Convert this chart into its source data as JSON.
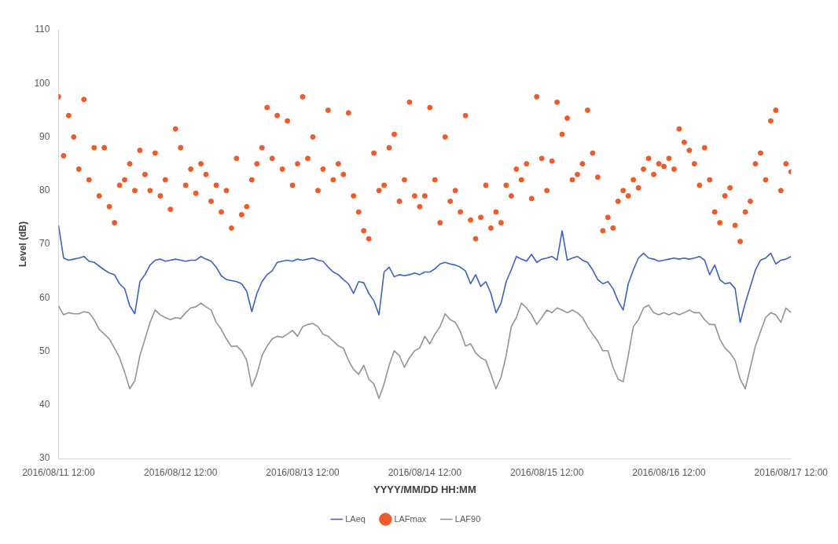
{
  "chart_data": {
    "type": "line",
    "xlabel": "YYYY/MM/DD HH:MM",
    "ylabel": "Level (dB)",
    "x": [
      "2016-08-11T12:00",
      "2016-08-11T13:00",
      "2016-08-11T14:00",
      "2016-08-11T15:00",
      "2016-08-11T16:00",
      "2016-08-11T17:00",
      "2016-08-11T18:00",
      "2016-08-11T19:00",
      "2016-08-11T20:00",
      "2016-08-11T21:00",
      "2016-08-11T22:00",
      "2016-08-11T23:00",
      "2016-08-12T00:00",
      "2016-08-12T01:00",
      "2016-08-12T02:00",
      "2016-08-12T03:00",
      "2016-08-12T04:00",
      "2016-08-12T05:00",
      "2016-08-12T06:00",
      "2016-08-12T07:00",
      "2016-08-12T08:00",
      "2016-08-12T09:00",
      "2016-08-12T10:00",
      "2016-08-12T11:00",
      "2016-08-12T12:00",
      "2016-08-12T13:00",
      "2016-08-12T14:00",
      "2016-08-12T15:00",
      "2016-08-12T16:00",
      "2016-08-12T17:00",
      "2016-08-12T18:00",
      "2016-08-12T19:00",
      "2016-08-12T20:00",
      "2016-08-12T21:00",
      "2016-08-12T22:00",
      "2016-08-12T23:00",
      "2016-08-13T00:00",
      "2016-08-13T01:00",
      "2016-08-13T02:00",
      "2016-08-13T03:00",
      "2016-08-13T04:00",
      "2016-08-13T05:00",
      "2016-08-13T06:00",
      "2016-08-13T07:00",
      "2016-08-13T08:00",
      "2016-08-13T09:00",
      "2016-08-13T10:00",
      "2016-08-13T11:00",
      "2016-08-13T12:00",
      "2016-08-13T13:00",
      "2016-08-13T14:00",
      "2016-08-13T15:00",
      "2016-08-13T16:00",
      "2016-08-13T17:00",
      "2016-08-13T18:00",
      "2016-08-13T19:00",
      "2016-08-13T20:00",
      "2016-08-13T21:00",
      "2016-08-13T22:00",
      "2016-08-13T23:00",
      "2016-08-14T00:00",
      "2016-08-14T01:00",
      "2016-08-14T02:00",
      "2016-08-14T03:00",
      "2016-08-14T04:00",
      "2016-08-14T05:00",
      "2016-08-14T06:00",
      "2016-08-14T07:00",
      "2016-08-14T08:00",
      "2016-08-14T09:00",
      "2016-08-14T10:00",
      "2016-08-14T11:00",
      "2016-08-14T12:00",
      "2016-08-14T13:00",
      "2016-08-14T14:00",
      "2016-08-14T15:00",
      "2016-08-14T16:00",
      "2016-08-14T17:00",
      "2016-08-14T18:00",
      "2016-08-14T19:00",
      "2016-08-14T20:00",
      "2016-08-14T21:00",
      "2016-08-14T22:00",
      "2016-08-14T23:00",
      "2016-08-15T00:00",
      "2016-08-15T01:00",
      "2016-08-15T02:00",
      "2016-08-15T03:00",
      "2016-08-15T04:00",
      "2016-08-15T05:00",
      "2016-08-15T06:00",
      "2016-08-15T07:00",
      "2016-08-15T08:00",
      "2016-08-15T09:00",
      "2016-08-15T10:00",
      "2016-08-15T11:00",
      "2016-08-15T12:00",
      "2016-08-15T13:00",
      "2016-08-15T14:00",
      "2016-08-15T15:00",
      "2016-08-15T16:00",
      "2016-08-15T17:00",
      "2016-08-15T18:00",
      "2016-08-15T19:00",
      "2016-08-15T20:00",
      "2016-08-15T21:00",
      "2016-08-15T22:00",
      "2016-08-15T23:00",
      "2016-08-16T00:00",
      "2016-08-16T01:00",
      "2016-08-16T02:00",
      "2016-08-16T03:00",
      "2016-08-16T04:00",
      "2016-08-16T05:00",
      "2016-08-16T06:00",
      "2016-08-16T07:00",
      "2016-08-16T08:00",
      "2016-08-16T09:00",
      "2016-08-16T10:00",
      "2016-08-16T11:00",
      "2016-08-16T12:00",
      "2016-08-16T13:00",
      "2016-08-16T14:00",
      "2016-08-16T15:00",
      "2016-08-16T16:00",
      "2016-08-16T17:00",
      "2016-08-16T18:00",
      "2016-08-16T19:00",
      "2016-08-16T20:00",
      "2016-08-16T21:00",
      "2016-08-16T22:00",
      "2016-08-16T23:00",
      "2016-08-17T00:00",
      "2016-08-17T01:00",
      "2016-08-17T02:00",
      "2016-08-17T03:00",
      "2016-08-17T04:00",
      "2016-08-17T05:00",
      "2016-08-17T06:00",
      "2016-08-17T07:00",
      "2016-08-17T08:00",
      "2016-08-17T09:00",
      "2016-08-17T10:00",
      "2016-08-17T11:00",
      "2016-08-17T12:00"
    ],
    "series": [
      {
        "name": "LAeq",
        "type": "line",
        "color": "#3a62c4",
        "values": [
          73.5,
          67.4,
          67,
          67.2,
          67.4,
          67.7,
          66.8,
          66.6,
          65.9,
          65.2,
          64.6,
          64.3,
          62.6,
          61.7,
          58.5,
          57,
          63,
          64.3,
          66.1,
          67,
          67.2,
          66.8,
          67,
          67.2,
          67,
          66.8,
          67,
          67,
          67.7,
          67.2,
          66.8,
          65.7,
          64.1,
          63.4,
          63.2,
          63,
          62.6,
          61.2,
          57.4,
          60.8,
          63,
          64.3,
          65,
          66.6,
          66.8,
          67,
          66.8,
          67.2,
          67,
          67.2,
          67.4,
          67,
          66.8,
          65.7,
          64.8,
          64.3,
          63.4,
          62.6,
          60.8,
          63,
          62.8,
          60.8,
          59.4,
          56.8,
          64.8,
          65.7,
          63.9,
          64.3,
          64.1,
          64.3,
          64.6,
          64.3,
          64.8,
          64.8,
          65.4,
          66.3,
          66.6,
          66.3,
          66.1,
          65.7,
          65,
          62.6,
          64.3,
          62.1,
          63,
          60.8,
          57.2,
          59,
          63,
          65.2,
          67.7,
          67.2,
          66.8,
          68.1,
          66.6,
          67.2,
          67.4,
          67.7,
          67,
          72.5,
          67,
          67.4,
          67.7,
          67,
          66.6,
          65.2,
          63.4,
          62.6,
          63,
          61.7,
          59.4,
          57.7,
          62.6,
          65.2,
          67.4,
          68.3,
          67.4,
          67.2,
          66.8,
          67,
          67.2,
          67.4,
          67.2,
          67.4,
          67.2,
          67.4,
          67.7,
          67,
          64.3,
          66.1,
          63.4,
          62.6,
          62.8,
          61.7,
          55.4,
          59,
          62.1,
          65.2,
          67,
          67.4,
          68.3,
          66.3,
          67,
          67.2,
          67.7
        ]
      },
      {
        "name": "LAFmax",
        "type": "scatter",
        "marker": "circle",
        "color": "#f05a28",
        "values": [
          97.5,
          86.5,
          94,
          90,
          84,
          97,
          82,
          88,
          79,
          88,
          77,
          74,
          81,
          82,
          85,
          80,
          87.5,
          83,
          80,
          87,
          79,
          82,
          76.5,
          91.5,
          88,
          81,
          84,
          79.5,
          85,
          83,
          78,
          81,
          76,
          80,
          73,
          86,
          75.5,
          77,
          82,
          85,
          88,
          95.5,
          86,
          94,
          84,
          93,
          81,
          85,
          97.5,
          86,
          90,
          80,
          84,
          95,
          82,
          85,
          83,
          94.5,
          79,
          76,
          72.5,
          71,
          87,
          80,
          81,
          88,
          90.5,
          78,
          82,
          96.5,
          79,
          77,
          79,
          95.5,
          82,
          74,
          90,
          78,
          80,
          76,
          94,
          74.5,
          71,
          75,
          81,
          73,
          76,
          74,
          81,
          79,
          84,
          82,
          85,
          78.5,
          97.5,
          86,
          80,
          85.5,
          96.5,
          90.5,
          93.5,
          82,
          83,
          85,
          95,
          87,
          82.5,
          72.5,
          75,
          73,
          78,
          80,
          79,
          82,
          80.5,
          84,
          86,
          83,
          85,
          84.5,
          86,
          84,
          91.5,
          89,
          87.5,
          85,
          81,
          88,
          82,
          76,
          74,
          79,
          80.5,
          73.5,
          70.5,
          76,
          78,
          85,
          87,
          82,
          93,
          95,
          80,
          85,
          83.5
        ]
      },
      {
        "name": "LAF90",
        "type": "line",
        "color": "#8e9696",
        "values": [
          58.5,
          56.8,
          57.2,
          57,
          57,
          57.4,
          57.2,
          55.9,
          54.1,
          53.2,
          52.3,
          50.6,
          48.8,
          46.1,
          43,
          44.5,
          49.2,
          52.3,
          55.4,
          57.7,
          56.8,
          56.3,
          55.9,
          56.3,
          56.1,
          57.2,
          58.1,
          58.3,
          59,
          58.3,
          57.7,
          55.4,
          54.1,
          52.3,
          50.9,
          51,
          50.1,
          48.3,
          43.4,
          45.7,
          49.2,
          51,
          52.3,
          52.8,
          52.6,
          53.2,
          53.9,
          52.8,
          54.6,
          55,
          55.2,
          54.6,
          53.2,
          52.8,
          51.9,
          51,
          50.6,
          48.3,
          46.6,
          45.7,
          47.4,
          44.8,
          43.9,
          41.2,
          43.9,
          47.4,
          50.1,
          49.2,
          47,
          48.8,
          50.1,
          50.6,
          52.8,
          51.4,
          53.2,
          54.6,
          57,
          55.9,
          55.4,
          53.7,
          51,
          51.4,
          49.7,
          48.8,
          48.3,
          45.7,
          43,
          45.2,
          49.2,
          54.6,
          56.3,
          59,
          58.1,
          56.8,
          55,
          56.3,
          57.7,
          57.2,
          58.1,
          57.7,
          57.2,
          57.7,
          57.2,
          56.3,
          54.6,
          53.2,
          51.9,
          50.1,
          50.1,
          47,
          44.8,
          44.3,
          49.2,
          54.6,
          55.9,
          58.1,
          58.6,
          57.2,
          56.8,
          57.2,
          56.8,
          57.2,
          56.8,
          57.2,
          57.7,
          57.2,
          57.2,
          55.9,
          55,
          55,
          52.3,
          50.6,
          49.7,
          48.3,
          44.8,
          43,
          47,
          51,
          53.7,
          56.3,
          57.2,
          56.8,
          55.4,
          58.1,
          57.2
        ]
      }
    ],
    "xlim": [
      "2016-08-11T12:00",
      "2016-08-17T12:00"
    ],
    "xticks": [
      {
        "value": "2016-08-11T12:00",
        "label": "2016/08/11 12:00"
      },
      {
        "value": "2016-08-12T12:00",
        "label": "2016/08/12 12:00"
      },
      {
        "value": "2016-08-13T12:00",
        "label": "2016/08/13 12:00"
      },
      {
        "value": "2016-08-14T12:00",
        "label": "2016/08/14 12:00"
      },
      {
        "value": "2016-08-15T12:00",
        "label": "2016/08/15 12:00"
      },
      {
        "value": "2016-08-16T12:00",
        "label": "2016/08/16 12:00"
      },
      {
        "value": "2016-08-17T12:00",
        "label": "2016/08/17 12:00"
      }
    ],
    "ylim": [
      30,
      110
    ],
    "yticks": [
      30,
      40,
      50,
      60,
      70,
      80,
      90,
      100,
      110
    ],
    "grid": false,
    "legend": "bottom"
  }
}
